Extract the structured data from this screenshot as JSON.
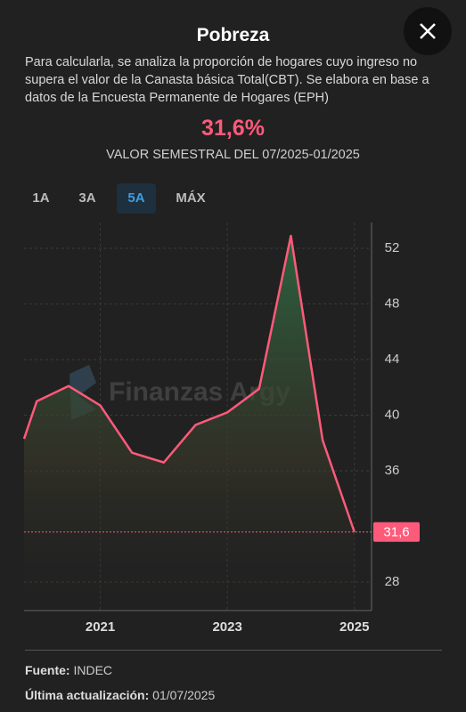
{
  "header": {
    "title": "Pobreza",
    "description": "Para calcularla, se analiza la proporción de hogares cuyo ingreso no supera el valor de la Canasta básica Total(CBT). Se elabora en base a datos de la Encuesta Permanente de Hogares (EPH)",
    "value": "31,6%",
    "subtitle": "VALOR SEMESTRAL DEL 07/2025-01/2025"
  },
  "tabs": [
    "1A",
    "3A",
    "5A",
    "MÁX"
  ],
  "active_tab": 2,
  "chart_data": {
    "type": "line",
    "watermark": "Finanzas Argy",
    "x": [
      2019.8,
      2020,
      2020.5,
      2021,
      2021.5,
      2022,
      2022.5,
      2023,
      2023.5,
      2024,
      2024.5,
      2025
    ],
    "series": [
      {
        "color": "#ff5a7a",
        "values": [
          38.3,
          41.0,
          42.1,
          40.7,
          37.3,
          36.6,
          39.3,
          40.2,
          41.9,
          52.9,
          38.2,
          31.6
        ]
      }
    ],
    "xlim": [
      2019.8,
      2025.27
    ],
    "xticks": [
      2021,
      2023,
      2025
    ],
    "ylim": [
      25.95,
      53.86
    ],
    "yticks": [
      28,
      36,
      40,
      44,
      48,
      52
    ],
    "marker": {
      "value": 31.6,
      "label": "31,6"
    },
    "grid": true
  },
  "footer": {
    "source_label": "Fuente:",
    "source": "INDEC",
    "updated_label": "Última actualización:",
    "updated": "01/07/2025"
  }
}
